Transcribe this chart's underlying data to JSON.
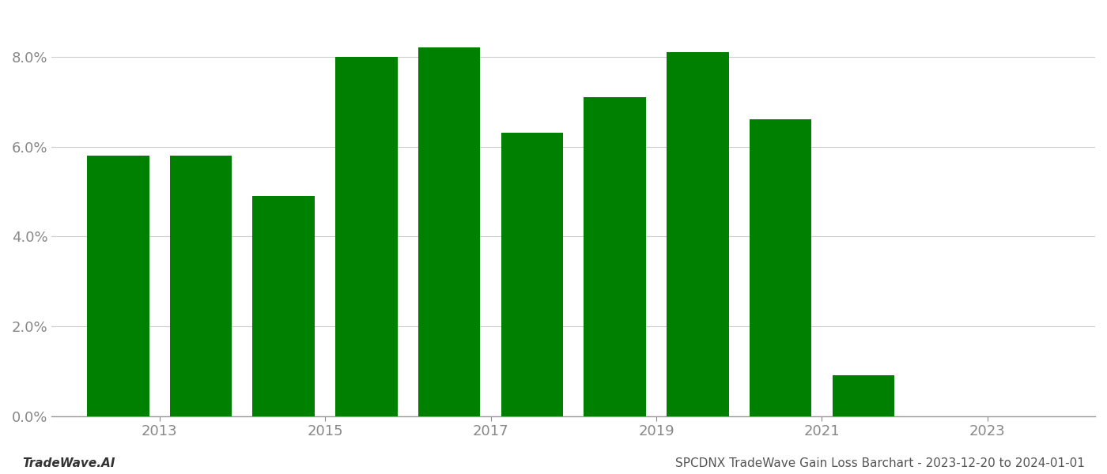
{
  "years": [
    2012,
    2013,
    2014,
    2015,
    2016,
    2017,
    2018,
    2019,
    2020,
    2021,
    2022
  ],
  "values": [
    0.058,
    0.058,
    0.049,
    0.08,
    0.082,
    0.063,
    0.071,
    0.081,
    0.066,
    0.009,
    0.0
  ],
  "bar_color": "#008000",
  "background_color": "#ffffff",
  "grid_color": "#cccccc",
  "axis_color": "#999999",
  "tick_color": "#888888",
  "ylim": [
    0.0,
    0.09
  ],
  "yticks": [
    0.0,
    0.02,
    0.04,
    0.06,
    0.08
  ],
  "xlim_left": 2011.2,
  "xlim_right": 2023.8,
  "xtick_positions": [
    2012.5,
    2014.5,
    2016.5,
    2018.5,
    2020.5,
    2022.5
  ],
  "xtick_labels": [
    "2013",
    "2015",
    "2017",
    "2019",
    "2021",
    "2023"
  ],
  "footer_left": "TradeWave.AI",
  "footer_right": "SPCDNX TradeWave Gain Loss Barchart - 2023-12-20 to 2024-01-01",
  "bar_width": 0.75,
  "figsize": [
    14.0,
    6.0
  ],
  "dpi": 100
}
